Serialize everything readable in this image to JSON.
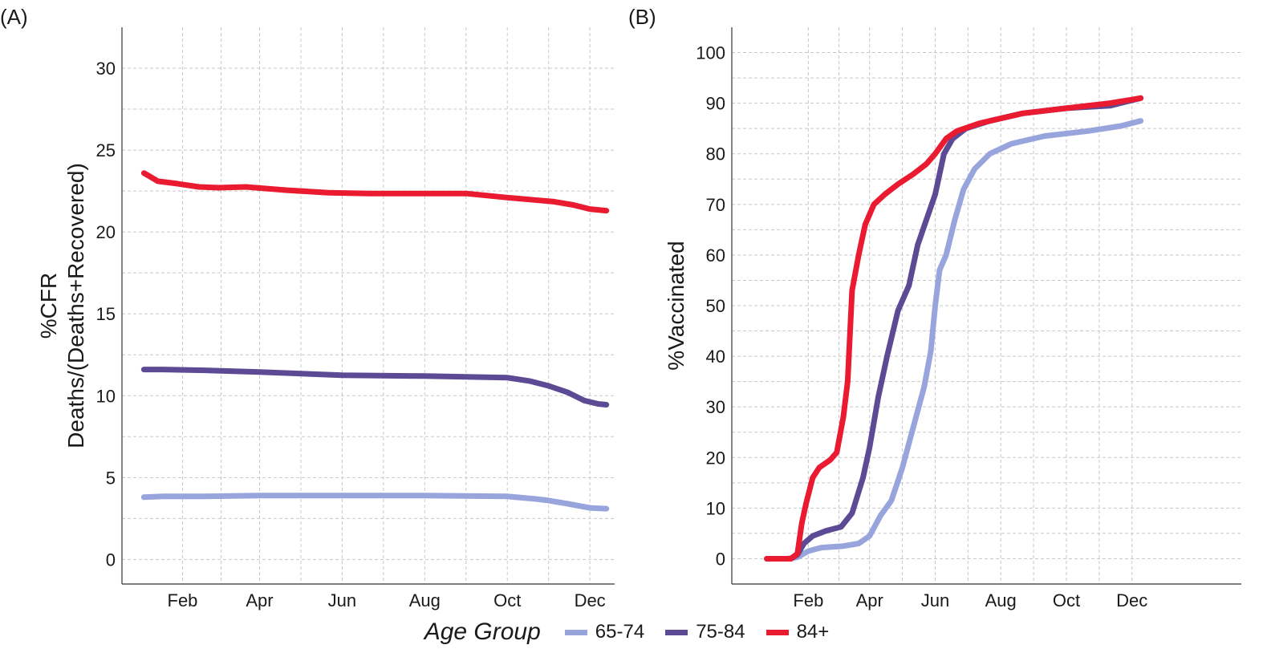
{
  "legend": {
    "title": "Age Group",
    "items": [
      {
        "label": "65-74",
        "color": "#98a4dc"
      },
      {
        "label": "75-84",
        "color": "#5c4a94"
      },
      {
        "label": "84+",
        "color": "#ea1a30"
      }
    ]
  },
  "chart_data": [
    {
      "type": "line",
      "panel_label": "(A)",
      "ylabel_lines": [
        "%CFR",
        "Deaths/(Deaths+Recovered)"
      ],
      "xlabel": "",
      "x_unit": "day of year",
      "xlim": [
        10,
        189
      ],
      "ylim": [
        -1.5,
        32.5
      ],
      "x_ticks": [
        {
          "value": 32,
          "label": "Feb"
        },
        {
          "value": 60,
          "label": "Apr"
        },
        {
          "value": 90,
          "label": "Jun"
        },
        {
          "value": 120,
          "label": "Aug"
        },
        {
          "value": 150,
          "label": "Oct"
        },
        {
          "value": 180,
          "label": "Dec"
        }
      ],
      "y_ticks": [
        0,
        5,
        10,
        15,
        20,
        25,
        30
      ],
      "grid": true,
      "series": [
        {
          "name": "65-74",
          "color": "#98a4dc",
          "points": [
            [
              18,
              3.8
            ],
            [
              25,
              3.85
            ],
            [
              40,
              3.85
            ],
            [
              60,
              3.9
            ],
            [
              90,
              3.9
            ],
            [
              120,
              3.9
            ],
            [
              150,
              3.85
            ],
            [
              160,
              3.7
            ],
            [
              165,
              3.6
            ],
            [
              172,
              3.4
            ],
            [
              180,
              3.15
            ],
            [
              186,
              3.1
            ]
          ]
        },
        {
          "name": "75-84",
          "color": "#5c4a94",
          "points": [
            [
              18,
              11.6
            ],
            [
              25,
              11.6
            ],
            [
              40,
              11.55
            ],
            [
              60,
              11.45
            ],
            [
              90,
              11.25
            ],
            [
              120,
              11.2
            ],
            [
              150,
              11.1
            ],
            [
              158,
              10.9
            ],
            [
              165,
              10.6
            ],
            [
              172,
              10.2
            ],
            [
              178,
              9.7
            ],
            [
              183,
              9.5
            ],
            [
              186,
              9.45
            ]
          ]
        },
        {
          "name": "84+",
          "color": "#ea1a30",
          "points": [
            [
              18,
              23.6
            ],
            [
              20,
              23.4
            ],
            [
              23,
              23.1
            ],
            [
              30,
              22.95
            ],
            [
              38,
              22.75
            ],
            [
              45,
              22.7
            ],
            [
              55,
              22.75
            ],
            [
              70,
              22.55
            ],
            [
              85,
              22.4
            ],
            [
              100,
              22.35
            ],
            [
              120,
              22.35
            ],
            [
              135,
              22.35
            ],
            [
              150,
              22.1
            ],
            [
              160,
              21.95
            ],
            [
              167,
              21.85
            ],
            [
              174,
              21.65
            ],
            [
              180,
              21.4
            ],
            [
              186,
              21.3
            ]
          ]
        }
      ]
    },
    {
      "type": "line",
      "panel_label": "(B)",
      "ylabel": "%Vaccinated",
      "xlabel": "",
      "x_unit": "day of year",
      "xlim": [
        -3,
        230
      ],
      "ylim": [
        -5,
        105
      ],
      "x_ticks": [
        {
          "value": 32,
          "label": "Feb"
        },
        {
          "value": 60,
          "label": "Apr"
        },
        {
          "value": 90,
          "label": "Jun"
        },
        {
          "value": 120,
          "label": "Aug"
        },
        {
          "value": 150,
          "label": "Oct"
        },
        {
          "value": 180,
          "label": "Dec"
        }
      ],
      "y_ticks": [
        0,
        10,
        20,
        30,
        40,
        50,
        60,
        70,
        80,
        90,
        100
      ],
      "grid": true,
      "series": [
        {
          "name": "65-74",
          "color": "#98a4dc",
          "points": [
            [
              13,
              0
            ],
            [
              22,
              0
            ],
            [
              27,
              0.3
            ],
            [
              32,
              1.5
            ],
            [
              38,
              2.2
            ],
            [
              48,
              2.5
            ],
            [
              55,
              3
            ],
            [
              60,
              4.5
            ],
            [
              65,
              8.5
            ],
            [
              70,
              11.5
            ],
            [
              75,
              18
            ],
            [
              80,
              26
            ],
            [
              85,
              34
            ],
            [
              88,
              41
            ],
            [
              90,
              50
            ],
            [
              92,
              57
            ],
            [
              95,
              60
            ],
            [
              99,
              67
            ],
            [
              103,
              73
            ],
            [
              108,
              77
            ],
            [
              115,
              80
            ],
            [
              125,
              82
            ],
            [
              140,
              83.5
            ],
            [
              160,
              84.5
            ],
            [
              175,
              85.5
            ],
            [
              184,
              86.5
            ]
          ]
        },
        {
          "name": "75-84",
          "color": "#5c4a94",
          "points": [
            [
              13,
              0
            ],
            [
              24,
              0
            ],
            [
              27,
              0.8
            ],
            [
              30,
              3
            ],
            [
              34,
              4.5
            ],
            [
              40,
              5.5
            ],
            [
              47,
              6.3
            ],
            [
              52,
              9
            ],
            [
              57,
              16
            ],
            [
              60,
              22
            ],
            [
              64,
              32
            ],
            [
              68,
              40
            ],
            [
              73,
              49
            ],
            [
              78,
              54
            ],
            [
              82,
              62
            ],
            [
              86,
              67
            ],
            [
              90,
              72
            ],
            [
              94,
              80
            ],
            [
              98,
              83
            ],
            [
              104,
              85
            ],
            [
              115,
              86.5
            ],
            [
              130,
              88
            ],
            [
              150,
              89
            ],
            [
              170,
              89.5
            ],
            [
              184,
              91
            ]
          ]
        },
        {
          "name": "84+",
          "color": "#ea1a30",
          "points": [
            [
              13,
              0
            ],
            [
              24,
              0
            ],
            [
              27,
              1
            ],
            [
              29,
              7
            ],
            [
              31,
              11
            ],
            [
              34,
              16
            ],
            [
              37,
              18
            ],
            [
              42,
              19.5
            ],
            [
              45,
              21
            ],
            [
              48,
              28
            ],
            [
              50,
              35
            ],
            [
              52,
              53
            ],
            [
              55,
              60
            ],
            [
              58,
              66
            ],
            [
              62,
              70
            ],
            [
              67,
              72
            ],
            [
              73,
              74
            ],
            [
              80,
              76
            ],
            [
              86,
              78
            ],
            [
              90,
              80
            ],
            [
              95,
              83
            ],
            [
              100,
              84.5
            ],
            [
              110,
              86
            ],
            [
              130,
              88
            ],
            [
              150,
              89
            ],
            [
              170,
              90
            ],
            [
              184,
              91
            ]
          ]
        }
      ]
    }
  ]
}
